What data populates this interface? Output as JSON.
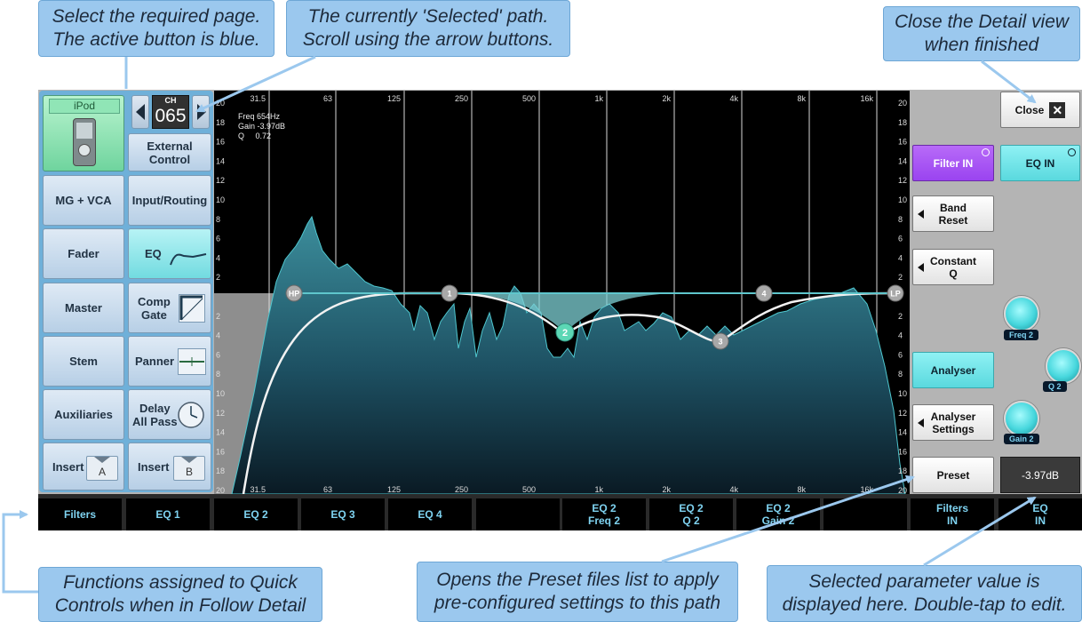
{
  "callouts": {
    "select_page": "Select the required page.\nThe active button is blue.",
    "selected_path": "The currently 'Selected' path.\nScroll using the arrow buttons.",
    "close_detail": "Close the Detail view\nwhen finished",
    "quick_controls": "Functions assigned to Quick\nControls when in Follow Detail",
    "preset_list": "Opens the Preset files list to apply\npre-configured settings to this path",
    "param_value": "Selected parameter value is\ndisplayed here. Double-tap to edit."
  },
  "channel": {
    "source": "iPod",
    "ch_label": "CH",
    "number": "065"
  },
  "pages": {
    "external_control": "External\nControl",
    "mg_vca": "MG + VCA",
    "input_routing": "Input/Routing",
    "fader": "Fader",
    "eq": "EQ",
    "master": "Master",
    "comp_gate": "Comp\nGate",
    "stem": "Stem",
    "panner": "Panner",
    "auxiliaries": "Auxiliaries",
    "delay": "Delay\nAll Pass",
    "insert_a": "Insert",
    "insert_a_tag": "A",
    "insert_b": "Insert",
    "insert_b_tag": "B"
  },
  "graph": {
    "freq_labels": [
      "31.5",
      "63",
      "125",
      "250",
      "500",
      "1k",
      "2k",
      "4k",
      "8k",
      "16k"
    ],
    "gain_labels": [
      "20",
      "18",
      "16",
      "14",
      "12",
      "10",
      "8",
      "6",
      "4",
      "2",
      "",
      "2",
      "4",
      "6",
      "8",
      "10",
      "12",
      "14",
      "16",
      "18",
      "20"
    ],
    "readout": {
      "freq": "Freq 654Hz",
      "gain": "Gain -3.97dB",
      "q": "Q     0.72"
    },
    "nodes": {
      "hp": "HP",
      "b1": "1",
      "b2": "2",
      "b3": "3",
      "b4": "4",
      "lp": "LP"
    }
  },
  "right": {
    "close": "Close",
    "filter_in": "Filter IN",
    "eq_in": "EQ IN",
    "band_reset": "Band\nReset",
    "constant_q": "Constant\nQ",
    "analyser": "Analyser",
    "analyser_settings": "Analyser\nSettings",
    "preset": "Preset",
    "value": "-3.97dB",
    "knobs": {
      "freq": "Freq 2",
      "q": "Q 2",
      "gain": "Gain 2"
    }
  },
  "quick_controls": [
    "Filters",
    "EQ 1",
    "EQ 2",
    "EQ 3",
    "EQ 4",
    "",
    "EQ 2\nFreq 2",
    "EQ 2\nQ 2",
    "EQ 2\nGain 2",
    "",
    "Filters\nIN",
    "EQ\nIN"
  ],
  "colors": {
    "active": "#72dbe0",
    "filter_in": "#a24ff5",
    "accent": "#5ec9cf"
  }
}
